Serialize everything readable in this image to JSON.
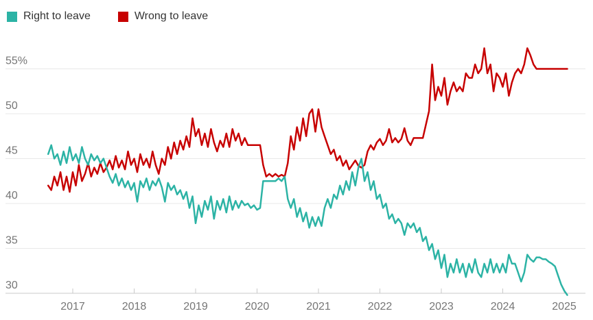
{
  "legend": {
    "items": [
      {
        "label": "Right to leave",
        "color": "#2cb3a5"
      },
      {
        "label": "Wrong to leave",
        "color": "#c70000"
      }
    ]
  },
  "chart_data": {
    "type": "line",
    "title": "",
    "xlabel": "",
    "ylabel": "",
    "grid": true,
    "legend_position": "top-left",
    "x_axis": {
      "range": [
        2016.55,
        2025.15
      ],
      "ticks": [
        {
          "value": 2017,
          "label": "2017"
        },
        {
          "value": 2018,
          "label": "2018"
        },
        {
          "value": 2019,
          "label": "2019"
        },
        {
          "value": 2020,
          "label": "2020"
        },
        {
          "value": 2021,
          "label": "2021"
        },
        {
          "value": 2022,
          "label": "2022"
        },
        {
          "value": 2023,
          "label": "2023"
        },
        {
          "value": 2024,
          "label": "2024"
        },
        {
          "value": 2025,
          "label": "2025"
        }
      ]
    },
    "y_axis": {
      "range": [
        30,
        58
      ],
      "unit": "%",
      "ticks": [
        {
          "value": 55,
          "label": "55%"
        },
        {
          "value": 50,
          "label": "50"
        },
        {
          "value": 45,
          "label": "45"
        },
        {
          "value": 40,
          "label": "40"
        },
        {
          "value": 35,
          "label": "35"
        },
        {
          "value": 30,
          "label": "30"
        }
      ]
    },
    "x_start": 2016.6,
    "x_step": 0.05,
    "series": [
      {
        "name": "Right to leave",
        "color": "#2cb3a5",
        "values": [
          45.5,
          46.5,
          45.0,
          45.5,
          44.3,
          45.8,
          44.5,
          46.3,
          44.8,
          45.5,
          44.5,
          46.3,
          45.0,
          44.3,
          45.5,
          44.8,
          45.3,
          44.5,
          45.0,
          44.0,
          43.0,
          42.3,
          43.3,
          42.0,
          42.8,
          41.8,
          42.5,
          41.5,
          42.3,
          40.2,
          42.5,
          41.8,
          42.8,
          41.5,
          42.5,
          42.0,
          42.8,
          41.8,
          40.2,
          42.3,
          41.5,
          42.0,
          41.0,
          41.5,
          40.5,
          41.3,
          39.5,
          40.8,
          37.8,
          39.8,
          38.5,
          40.3,
          39.3,
          40.8,
          38.3,
          40.3,
          39.3,
          40.5,
          39.0,
          40.8,
          39.3,
          40.3,
          39.5,
          40.3,
          39.8,
          40.0,
          39.5,
          39.8,
          39.3,
          39.5,
          42.5,
          42.5,
          42.5,
          42.5,
          42.5,
          42.8,
          42.5,
          43.0,
          40.5,
          39.5,
          40.5,
          38.5,
          39.5,
          38.0,
          39.0,
          37.3,
          38.5,
          37.5,
          38.5,
          37.5,
          39.5,
          40.5,
          39.5,
          41.0,
          40.5,
          42.0,
          41.0,
          42.5,
          41.5,
          43.5,
          42.0,
          44.0,
          45.0,
          42.5,
          43.5,
          41.5,
          42.5,
          40.5,
          41.0,
          39.5,
          40.0,
          38.3,
          38.8,
          37.8,
          38.3,
          37.8,
          36.5,
          37.8,
          37.3,
          37.8,
          36.8,
          37.3,
          35.8,
          36.3,
          34.8,
          35.5,
          33.8,
          34.8,
          32.8,
          34.3,
          31.8,
          33.3,
          32.3,
          33.8,
          32.3,
          33.3,
          31.8,
          33.3,
          32.3,
          33.8,
          32.3,
          31.8,
          33.3,
          32.3,
          33.8,
          32.3,
          33.3,
          32.3,
          33.3,
          32.3,
          34.3,
          33.3,
          33.3,
          32.3,
          31.3,
          32.3,
          34.3,
          33.8,
          33.5,
          34.0,
          34.0,
          33.8,
          33.8,
          33.5,
          33.3,
          33.0,
          32.0,
          31.0,
          30.3,
          29.8
        ]
      },
      {
        "name": "Wrong to leave",
        "color": "#c70000",
        "values": [
          42.0,
          41.5,
          43.0,
          42.0,
          43.5,
          41.5,
          43.0,
          41.3,
          43.5,
          42.0,
          44.3,
          42.5,
          43.3,
          44.5,
          43.0,
          44.0,
          43.3,
          44.5,
          43.5,
          44.0,
          44.8,
          43.8,
          45.3,
          44.0,
          44.8,
          43.8,
          45.8,
          44.3,
          45.0,
          43.5,
          45.5,
          44.3,
          45.0,
          44.0,
          45.8,
          44.3,
          43.3,
          45.0,
          44.3,
          46.3,
          45.0,
          46.8,
          45.5,
          47.0,
          46.0,
          47.5,
          46.3,
          49.5,
          47.5,
          48.3,
          46.5,
          47.8,
          46.3,
          48.3,
          46.8,
          45.8,
          47.0,
          46.3,
          47.8,
          46.3,
          48.3,
          47.0,
          47.8,
          46.5,
          47.3,
          46.5,
          46.5,
          46.5,
          46.5,
          46.5,
          44.3,
          43.0,
          43.3,
          43.0,
          43.3,
          43.0,
          43.2,
          43.0,
          44.5,
          47.5,
          46.0,
          48.5,
          47.0,
          49.5,
          47.5,
          50.0,
          50.5,
          48.0,
          50.5,
          48.5,
          47.5,
          46.5,
          45.5,
          46.0,
          44.8,
          45.3,
          44.2,
          44.8,
          43.8,
          44.3,
          44.8,
          44.2,
          44.0,
          44.3,
          45.8,
          46.5,
          46.0,
          46.8,
          47.2,
          46.5,
          47.0,
          48.3,
          46.8,
          47.3,
          46.8,
          47.2,
          48.4,
          47.0,
          46.5,
          47.3,
          47.3,
          47.3,
          47.3,
          48.8,
          50.3,
          55.5,
          51.5,
          53.0,
          52.0,
          54.0,
          51.0,
          52.5,
          53.5,
          52.5,
          53.0,
          52.5,
          54.5,
          54.0,
          54.0,
          55.5,
          54.5,
          55.0,
          57.3,
          54.5,
          55.5,
          52.5,
          54.5,
          54.0,
          53.0,
          54.5,
          52.0,
          53.5,
          54.5,
          55.0,
          54.5,
          55.5,
          57.3,
          56.5,
          55.5,
          55.0,
          55.0,
          55.0,
          55.0,
          55.0,
          55.0,
          55.0,
          55.0,
          55.0,
          55.0,
          55.0
        ]
      }
    ],
    "colors": {
      "gridline": "#e8e8e8",
      "axis_line": "#c9c9c9",
      "axis_label": "#767676",
      "legend_text": "#333333"
    }
  }
}
